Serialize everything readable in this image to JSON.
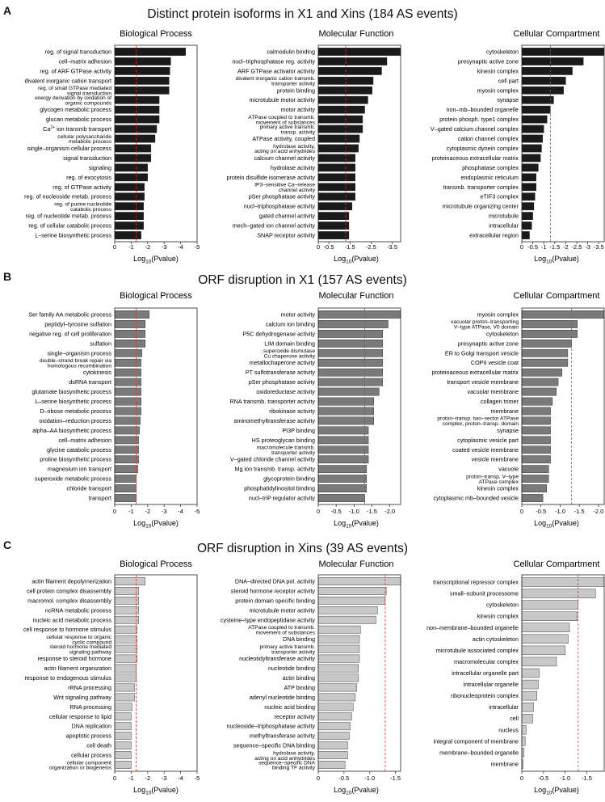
{
  "figure": {
    "xlabel": "Log10(Pvalue)",
    "panels": [
      {
        "letter": "A",
        "title": "Distinct protein isoforms in X1 and Xins (184 AS events)",
        "bar_color": "#1a1a1a",
        "subpanels": [
          "Biological Process",
          "Molecular Function",
          "Cellular Compartment"
        ]
      },
      {
        "letter": "B",
        "title": "ORF disruption in X1 (157 AS events)",
        "bar_color": "#7a7a7a",
        "subpanels": [
          "Biological Process",
          "Molecular Function",
          "Cellular Compartment"
        ]
      },
      {
        "letter": "C",
        "title": "ORF disruption in Xins (39 AS events)",
        "bar_color": "#c8c8c8",
        "subpanels": [
          "Biological Process",
          "Molecular Function",
          "Cellular Compartment"
        ]
      }
    ]
  },
  "chart_data": [
    {
      "panel": "A",
      "type": "bar",
      "orientation": "horizontal",
      "title": "Biological Process",
      "xlabel": "Log10(Pvalue)",
      "xlim": [
        0,
        -5
      ],
      "xticks": [
        0,
        -1,
        -2,
        -3,
        -4,
        -5
      ],
      "xtick_labels": [
        "0",
        "-1",
        "-2",
        "-3",
        "-4",
        "-5"
      ],
      "threshold": -1.3,
      "categories": [
        "reg. of signal transduction",
        "cell–matrix adhesion",
        "reg. of ARF GTPase activity",
        "divalent inorganic cation transport",
        "reg. of small GTPase mediated\nsignal transduction",
        "energy derivation by oxidation of\norganic compounds",
        "glycogen metabolic process",
        "glucan metabolic process",
        "Ca2+ ion transmb transport",
        "cellular polysaccharide\nmetabolic process",
        "single–organism cellular process",
        "signal transduction",
        "signaling",
        "reg. of exocytosis",
        "reg. of GTPase activity",
        "reg. of nucleoside metab. process",
        "reg. of purine nucleotide\ncatabolic process",
        "reg. of nucleotide metab. process",
        "reg. of cellular catabolic process",
        "L–serine biosynthetic process"
      ],
      "values": [
        -4.3,
        -3.4,
        -3.35,
        -3.3,
        -3.3,
        -2.7,
        -2.7,
        -2.7,
        -2.55,
        -2.45,
        -2.2,
        -2.2,
        -2.0,
        -2.0,
        -1.8,
        -1.8,
        -1.75,
        -1.75,
        -1.75,
        -1.6
      ]
    },
    {
      "panel": "A",
      "type": "bar",
      "orientation": "horizontal",
      "title": "Molecular Function",
      "xlabel": "Log10(Pvalue)",
      "xlim": [
        0,
        -3.9
      ],
      "xticks": [
        0,
        -0.5,
        -1.5,
        -2.5,
        -3.5
      ],
      "xtick_labels": [
        "0",
        "-0.5",
        "-1.5",
        "-2.5",
        "-3.5"
      ],
      "threshold": -1.3,
      "categories": [
        "calmodulin binding",
        "nucl–triphosphatase reg. activity",
        "ARF GTPase activator activity",
        "divalent inorganic cation transmb.\ntransporter activity",
        "protein binding",
        "microtubule motor activity",
        "motor activity",
        "ATPase coupled to transmb.\nmovement of substances",
        "primary active transmb.\ntransp. activity",
        "ATPase activity, coupled",
        "hydrolase activity,\nacting on acid anhydrides",
        "calcium channel activity",
        "hydrolase activity",
        "protein disulfide isomerase activity",
        "IP3–sensitive Ca–release\nchannel activity",
        "pSer phosphatase activity",
        "nucl–triphosphatase activity",
        "gated channel activity",
        "mech–gated ion channel activity",
        "SNAP receptor activity"
      ],
      "values": [
        -3.9,
        -3.25,
        -3.0,
        -2.6,
        -2.55,
        -2.35,
        -2.2,
        -2.1,
        -2.1,
        -1.95,
        -1.9,
        -1.75,
        -1.75,
        -1.75,
        -1.75,
        -1.75,
        -1.6,
        -1.45,
        -1.45,
        -1.45
      ]
    },
    {
      "panel": "A",
      "type": "bar",
      "orientation": "horizontal",
      "title": "Cellular Compartment",
      "xlabel": "Log10(Pvalue)",
      "xlim": [
        0,
        -3.75
      ],
      "xticks": [
        0,
        -0.5,
        -1,
        -1.5,
        -2,
        -2.5,
        -3,
        -3.5
      ],
      "xtick_labels": [
        "0",
        "-0.5",
        "-1",
        "-1.5",
        "-2",
        "-2.5",
        "-3",
        "-3.5"
      ],
      "threshold": -1.3,
      "categories": [
        "cytoskeleton",
        "presynaptic active zone",
        "kinesin complex",
        "cell part",
        "myosin complex",
        "synapse",
        "non–mb–bounded organelle",
        "protein phosph. type1 complex",
        "V–gated calcium channel complex",
        "cation channel complex",
        "cytoplasmic dynein complex",
        "proteinaceous extracellular matrix",
        "phosphatase complex",
        "endoplasmic reticulum",
        "transmb. transporter complex",
        "eTIF3 complex",
        "microtubule organizing center",
        "microtubule",
        "intracellular",
        "extracellular region"
      ],
      "values": [
        -3.75,
        -2.8,
        -2.3,
        -2.0,
        -1.9,
        -1.45,
        -1.3,
        -1.15,
        -1.0,
        -0.95,
        -0.9,
        -0.85,
        -0.75,
        -0.65,
        -0.65,
        -0.6,
        -0.55,
        -0.5,
        -0.45,
        -0.35
      ]
    },
    {
      "panel": "B",
      "type": "bar",
      "orientation": "horizontal",
      "title": "Biological Process",
      "xlabel": "Log10(Pvalue)",
      "xlim": [
        0,
        -5
      ],
      "xticks": [
        0,
        -1,
        -2,
        -3,
        -4,
        -5
      ],
      "xtick_labels": [
        "0",
        "-1",
        "-2",
        "-3",
        "-4",
        "-5"
      ],
      "threshold": -1.3,
      "categories": [
        "Ser family AA metabolic process",
        "peptidyl–tyrosine sulfation",
        "negative reg. of cell proliferation",
        "sulfation",
        "single–organism process",
        "double–strand break repair via\nhomologous recombination",
        "cytokinesis",
        "dsRNA transport",
        "glutamate biosynthetic process",
        "L–serine biosynthetic process",
        "D–ribose metabolic process",
        "oxidation–reduction process",
        "alpha–AA biosynthetic process",
        "cell–matrix adhesion",
        "glycine catabolic process",
        "proline biosynthetic process",
        "magnesium ion transport",
        "superoxide metabolic process",
        "chloride transport",
        "transport"
      ],
      "values": [
        -2.1,
        -1.85,
        -1.85,
        -1.85,
        -1.65,
        -1.6,
        -1.6,
        -1.6,
        -1.6,
        -1.6,
        -1.6,
        -1.55,
        -1.5,
        -1.45,
        -1.45,
        -1.45,
        -1.4,
        -1.3,
        -1.3,
        -1.3
      ]
    },
    {
      "panel": "B",
      "type": "bar",
      "orientation": "horizontal",
      "title": "Molecular Function",
      "xlabel": "Log10(Pvalue)",
      "xlim": [
        0,
        -2.3
      ],
      "xticks": [
        0,
        -0.5,
        -1,
        -1.5,
        -2
      ],
      "xtick_labels": [
        "0",
        "-0.5",
        "-1.0",
        "-1.5",
        "-2.0"
      ],
      "threshold": -1.3,
      "categories": [
        "motor activity",
        "calcium ion binding",
        "P5C dehydrogenase activity",
        "LIM domain binding",
        "superoxide dismutase\nCu chaperone activity",
        "metallochaperone activity",
        "PT sulfotransferase activity",
        "pSer phosphatase activity",
        "oxidoreductase activity",
        "RNA transmb. transporter activity",
        "ribokinase activity",
        "aminomethyltransferase activity",
        "PI3P binding",
        "HS proteoglycan binding",
        "macromolecule transmb.\ntransporter activity",
        "V–gated chloride channel activity",
        "Mg ion transmb. transp. activity",
        "glycoprotein binding",
        "phosphatidylinositol binding",
        "nucl–triP regulator activity"
      ],
      "values": [
        -2.3,
        -1.95,
        -1.8,
        -1.8,
        -1.8,
        -1.8,
        -1.8,
        -1.8,
        -1.7,
        -1.55,
        -1.55,
        -1.55,
        -1.4,
        -1.4,
        -1.4,
        -1.4,
        -1.35,
        -1.35,
        -1.35,
        -1.3
      ]
    },
    {
      "panel": "B",
      "type": "bar",
      "orientation": "horizontal",
      "title": "Cellular Compartment",
      "xlabel": "Log10(Pvalue)",
      "xlim": [
        0,
        -2.15
      ],
      "xticks": [
        0,
        -0.5,
        -1,
        -1.5,
        -2
      ],
      "xtick_labels": [
        "0",
        "-0.5",
        "-1.0",
        "-1.5",
        "-2.0"
      ],
      "threshold": -1.3,
      "categories": [
        "myosin complex",
        "vacuolar proton–transporting\nV–type ATPase, V0 domain",
        "cytoskeleton",
        "presynaptic active zone",
        "ER to Golgi transport vesicle",
        "COPII vesicle coat",
        "proteinaceous extracellular matrix",
        "transport vesicle membrane",
        "vacuolar membrane",
        "collagen trimer",
        "membrane",
        "proton–transp. two–sector ATPase\ncomplex, proton–transp. domain",
        "synapse",
        "cytoplasmic vesicle part",
        "coated vesicle membrane",
        "vesicle membrane",
        "vacuole",
        "proton–transp. V–type\nATPase complex",
        "kinesin complex",
        "cytoplasmic mb–bounded vesicle"
      ],
      "values": [
        -2.15,
        -1.45,
        -1.45,
        -1.3,
        -1.2,
        -1.2,
        -1.05,
        -0.95,
        -0.9,
        -0.8,
        -0.75,
        -0.75,
        -0.75,
        -0.75,
        -0.75,
        -0.75,
        -0.7,
        -0.7,
        -0.65,
        -0.55
      ]
    },
    {
      "panel": "C",
      "type": "bar",
      "orientation": "horizontal",
      "title": "Biological Process",
      "xlabel": "Log10(Pvalue)",
      "xlim": [
        0,
        -5
      ],
      "xticks": [
        0,
        -1,
        -2,
        -3,
        -4,
        -5
      ],
      "xtick_labels": [
        "0",
        "-1",
        "-2",
        "-3",
        "-4",
        "-5"
      ],
      "threshold": -1.3,
      "categories": [
        "actin filament depolymerization",
        "cell protein complex disassembly",
        "macromol. complex disassembly",
        "ncRNA metabolic process",
        "nucleic acid metabolic process",
        "cell response to hormone stimulus",
        "cellular response to organic\ncyclic compound",
        "steroid hormone mediated\nsignaling pathway",
        "response to steroid hormone",
        "actin filament organization",
        "response to endogenous stimulus",
        "rRNA processing",
        "Wnt signaling pathway",
        "RNA processing",
        "cellular response to lipid",
        "DNA replication",
        "apoptotic process",
        "cell death",
        "cellular process",
        "cellular component\norganization or biogenesis"
      ],
      "values": [
        -1.85,
        -1.45,
        -1.45,
        -1.45,
        -1.45,
        -1.35,
        -1.35,
        -1.35,
        -1.35,
        -1.3,
        -1.3,
        -1.2,
        -1.2,
        -1.05,
        -1.0,
        -1.0,
        -1.0,
        -1.0,
        -1.0,
        -1.0
      ]
    },
    {
      "panel": "C",
      "type": "bar",
      "orientation": "horizontal",
      "title": "Molecular Function",
      "xlabel": "Log10(Pvalue)",
      "xlim": [
        0,
        -1.6
      ],
      "xticks": [
        0,
        -0.5,
        -1,
        -1.5
      ],
      "xtick_labels": [
        "0",
        "-0.5",
        "-1.0",
        "-1.5"
      ],
      "threshold": -1.3,
      "categories": [
        "DNA–directed DNA pol. activity",
        "steroid hormone receptor activity",
        "protein domain specific binding",
        "microtubule motor activity",
        "cysteine–type endopeptidase activity",
        "ATPase coupled to transmb.\nmovement of substances",
        "DNA binding",
        "primary active transmb.\ntransporter activity",
        "nucleotidyltransferase activity",
        "nucleotide binding",
        "actin binding",
        "ATP binding",
        "adenyl nucleotide binding",
        "nucleic acid binding",
        "receptor activity",
        "nucleoside–triphosphatase activity",
        "methyltransferase activity",
        "sequence–specific DNA binding",
        "hydrolase activity,\nacting on acid anhydrides",
        "sequence–specific DNA\nbinding TF activity"
      ],
      "values": [
        -1.6,
        -1.32,
        -1.3,
        -1.15,
        -1.12,
        -0.82,
        -0.8,
        -0.8,
        -0.8,
        -0.78,
        -0.78,
        -0.75,
        -0.72,
        -0.68,
        -0.65,
        -0.62,
        -0.6,
        -0.57,
        -0.57,
        -0.52
      ]
    },
    {
      "panel": "C",
      "type": "bar",
      "orientation": "horizontal",
      "title": "Cellular Compartment",
      "xlabel": "Log10(Pvalue)",
      "xlim": [
        0,
        -1.9
      ],
      "xticks": [
        0,
        -0.5,
        -1,
        -1.5
      ],
      "xtick_labels": [
        "0",
        "-0.5",
        "-1.0",
        "-1.5"
      ],
      "threshold": -1.3,
      "categories": [
        "transcriptional repressor complex",
        "small–subunit processome",
        "cytoskeleton",
        "kinesin complex",
        "non–membrane–bounded organelle",
        "actin cytoskeleton",
        "microtubule associated complex",
        "macromolecular complex",
        "intracellular organelle part",
        "intracellular organelle",
        "ribonucleoprotein complex",
        "intracellular",
        "cell",
        "nucleus",
        "integral component of membrane",
        "membrane–bounded organelle",
        "membrane"
      ],
      "values": [
        -1.9,
        -1.7,
        -1.3,
        -1.28,
        -1.1,
        -1.07,
        -1.0,
        -0.8,
        -0.4,
        -0.38,
        -0.35,
        -0.27,
        -0.25,
        -0.1,
        -0.08,
        -0.05,
        -0.03
      ]
    }
  ]
}
